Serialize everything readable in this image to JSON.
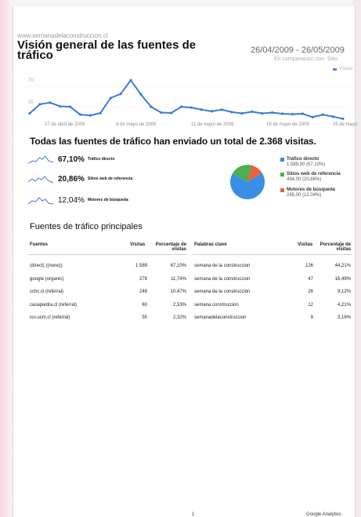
{
  "header": {
    "site": "www.semanadelaconstruccion.cl",
    "title": "Visión general de las fuentes de tráfico",
    "date_range": "26/04/2009 - 26/05/2009",
    "comparison": "En comparación con: Sitio",
    "legend_label": "Visitas"
  },
  "trend_chart": {
    "y_ticks": [
      "70",
      "35"
    ],
    "x_ticks": [
      "27 de abril de 2009",
      "4 de mayo de 2009",
      "11 de mayo de 2009",
      "18 de mayo de 2009",
      "25 de mayo"
    ],
    "values": [
      18,
      40,
      44,
      35,
      34,
      15,
      13,
      19,
      55,
      65,
      98,
      64,
      34,
      20,
      19,
      34,
      32,
      27,
      23,
      27,
      21,
      18,
      22,
      18,
      20,
      17,
      16,
      17,
      9,
      15,
      10,
      5
    ],
    "ylim": [
      0,
      110
    ],
    "color": "#3a7bd5"
  },
  "summary": {
    "text": "Todas las fuentes de tráfico han enviado un total de 2.368 visitas."
  },
  "sources": [
    {
      "pct": "67,10%",
      "label": "Tráfico directo"
    },
    {
      "pct": "20,86%",
      "label": "Sitios web de referencia"
    },
    {
      "pct": "12,04%",
      "label": "Motores de búsqueda"
    }
  ],
  "chart_data": {
    "type": "pie",
    "slices": [
      {
        "name": "Tráfico directo",
        "value": 67.1,
        "detail": "1.589,00 (67,10%)",
        "color": "#3a8ee6"
      },
      {
        "name": "Sitios web de referencia",
        "value": 20.86,
        "detail": "494,00 (20,86%)",
        "color": "#4caf50"
      },
      {
        "name": "Motores de búsqueda",
        "value": 12.04,
        "detail": "285,00 (12,04%)",
        "color": "#e8623a"
      }
    ]
  },
  "top_sources": {
    "title": "Fuentes de tráfico principales",
    "headers": {
      "source": "Fuentes",
      "visits": "Visitas",
      "pct_visits": "Porcentaje de visitas",
      "keywords": "Palabras clave",
      "kw_visits": "Visitas",
      "kw_pct": "Porcentaje de visitas"
    },
    "rows": [
      {
        "source": "(direct) ((none))",
        "visits": "1.589",
        "pct": "67,10%",
        "keyword": "semana de la construccion",
        "kw_visits": "126",
        "kw_pct": "44,21%"
      },
      {
        "source": "google (organic)",
        "visits": "278",
        "pct": "11,74%",
        "keyword": "semana de la construccion",
        "kw_visits": "47",
        "kw_pct": "16,49%"
      },
      {
        "source": "cchc.cl (referral)",
        "visits": "248",
        "pct": "10,47%",
        "keyword": "semana de la construcción",
        "kw_visits": "26",
        "kw_pct": "9,12%"
      },
      {
        "source": "casapiedra.cl (referral)",
        "visits": "60",
        "pct": "2,53%",
        "keyword": "semana construccion",
        "kw_visits": "12",
        "kw_pct": "4,21%"
      },
      {
        "source": "ico.ucm.cl (referral)",
        "visits": "55",
        "pct": "2,32%",
        "keyword": "semanadelaconstruccion",
        "kw_visits": "9",
        "kw_pct": "3,16%"
      }
    ]
  },
  "footer": {
    "page_number": "1",
    "brand": "Google Analytics"
  }
}
